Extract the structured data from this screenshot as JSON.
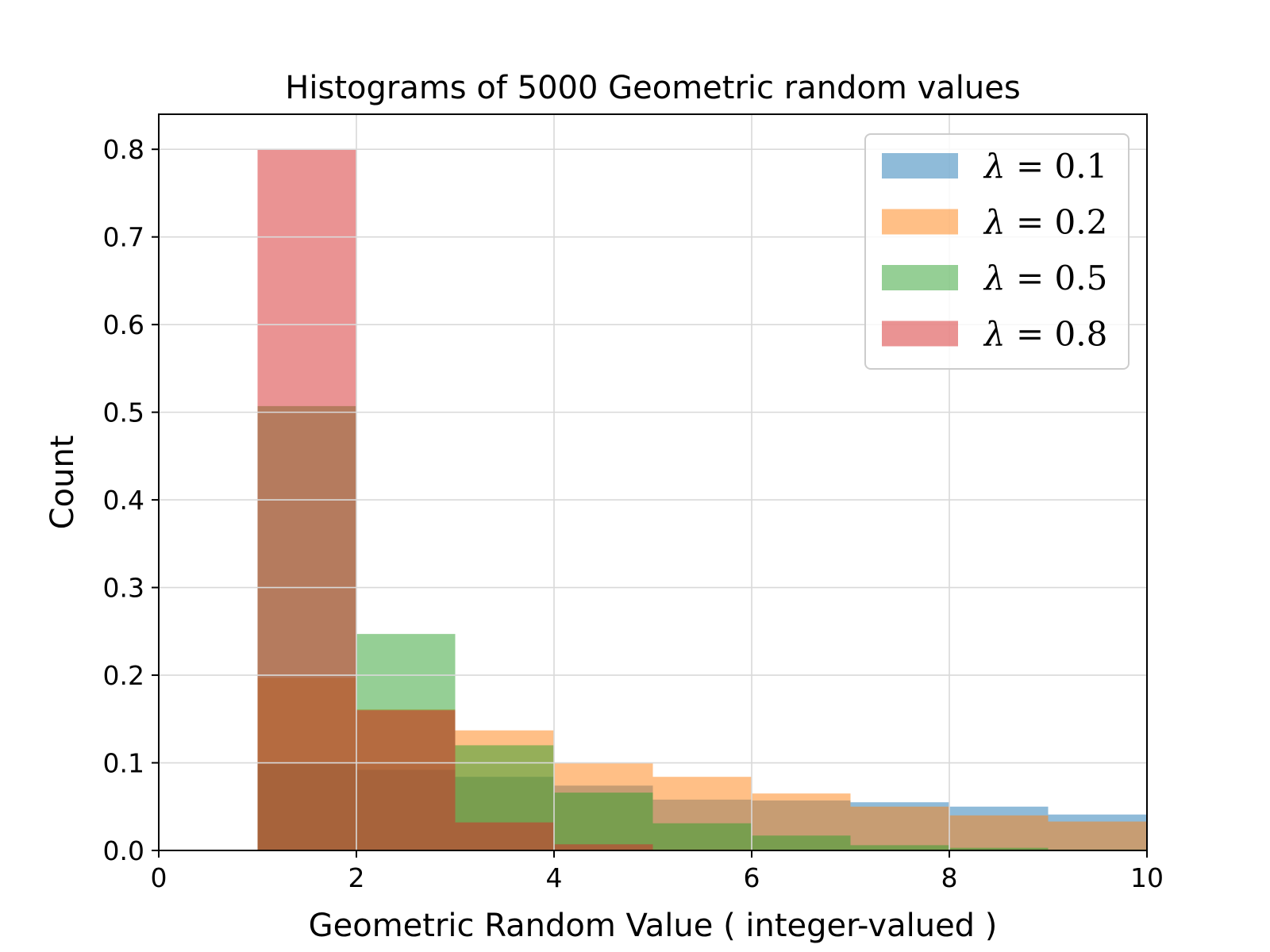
{
  "chart_data": {
    "type": "histogram",
    "title": "Histograms of 5000 Geometric random values",
    "xlabel": "Geometric Random Value ( integer-valued )",
    "ylabel": "Count",
    "xlim": [
      0,
      10
    ],
    "ylim": [
      0,
      0.84
    ],
    "xticks": [
      0,
      2,
      4,
      6,
      8,
      10
    ],
    "yticks": [
      0.0,
      0.1,
      0.2,
      0.3,
      0.4,
      0.5,
      0.6,
      0.7,
      0.8
    ],
    "grid": true,
    "legend_position": "top-right",
    "bin_edges": [
      1,
      2,
      3,
      4,
      5,
      6,
      7,
      8,
      9,
      10
    ],
    "series": [
      {
        "name": "0.1",
        "lambda": "0.1",
        "color": "#1f77b4",
        "values": [
          0.099,
          0.092,
          0.084,
          0.074,
          0.058,
          0.057,
          0.055,
          0.05,
          0.041
        ]
      },
      {
        "name": "0.2",
        "lambda": "0.2",
        "color": "#ff7f0e",
        "values": [
          0.197,
          0.161,
          0.137,
          0.1,
          0.084,
          0.065,
          0.05,
          0.04,
          0.033
        ]
      },
      {
        "name": "0.5",
        "lambda": "0.5",
        "color": "#2ca02c",
        "values": [
          0.507,
          0.247,
          0.12,
          0.066,
          0.031,
          0.017,
          0.006,
          0.003,
          0.001
        ]
      },
      {
        "name": "0.8",
        "lambda": "0.8",
        "color": "#d62728",
        "values": [
          0.8,
          0.16,
          0.032,
          0.007,
          0.001,
          0.0,
          0.0,
          0.0,
          0.0
        ]
      }
    ]
  }
}
